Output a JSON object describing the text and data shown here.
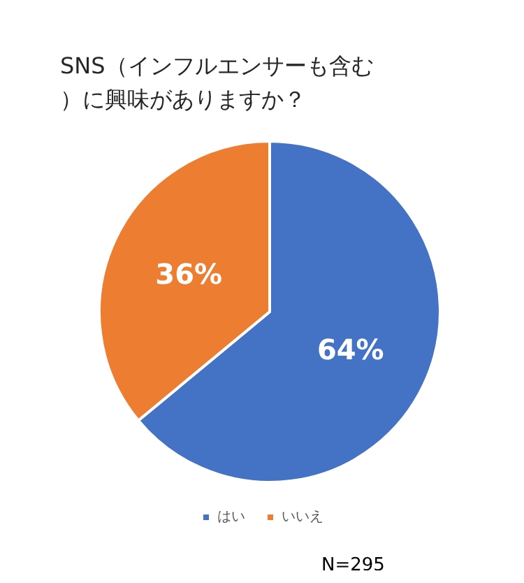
{
  "chart_data": {
    "type": "pie",
    "title": "SNS（インフルエンサーも含む）に興味がありますか？",
    "categories": [
      "はい",
      "いいえ"
    ],
    "values": [
      64,
      36
    ],
    "colors": [
      "#4472c4",
      "#ed7d31"
    ],
    "value_labels": [
      "64%",
      "36%"
    ],
    "legend": "bottom",
    "annotations": [
      "N=295"
    ]
  }
}
